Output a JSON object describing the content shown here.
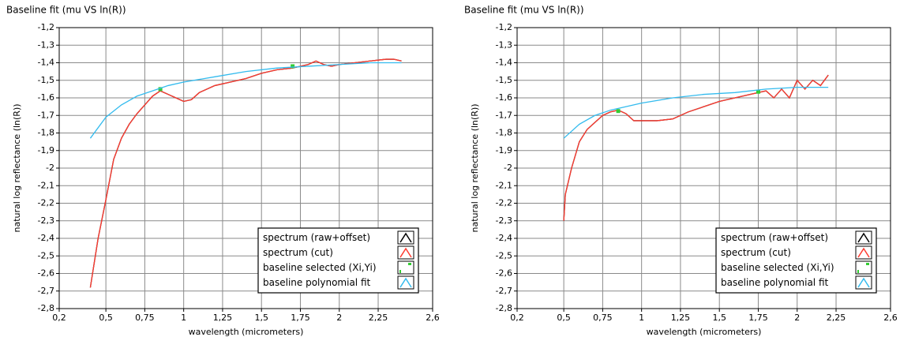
{
  "chart_data": [
    {
      "type": "line",
      "title": "Baseline fit (mu VS ln(R))",
      "x_label": "wavelength (micrometers)",
      "y_label": "natural log reflectance (ln(R))",
      "xlim": [
        0.2,
        2.6
      ],
      "ylim": [
        -2.8,
        -1.2
      ],
      "grid": true,
      "legend": "lower right",
      "xticks": [
        {
          "value": 0.2,
          "label": "0,2"
        },
        {
          "value": 0.5,
          "label": "0,5"
        },
        {
          "value": 0.75,
          "label": "0,75"
        },
        1,
        {
          "value": 1.25,
          "label": "1,25"
        },
        {
          "value": 1.5,
          "label": "1,5"
        },
        {
          "value": 1.75,
          "label": "1,75"
        },
        2,
        {
          "value": 2.25,
          "label": "2,25"
        },
        {
          "value": 2.6,
          "label": "2,6"
        }
      ],
      "yticks": [
        {
          "value": -1.2,
          "label": "-1,2"
        },
        {
          "value": -1.3,
          "label": "-1,3"
        },
        {
          "value": -1.4,
          "label": "-1,4"
        },
        {
          "value": -1.5,
          "label": "-1,5"
        },
        {
          "value": -1.6,
          "label": "-1,6"
        },
        {
          "value": -1.7,
          "label": "-1,7"
        },
        {
          "value": -1.8,
          "label": "-1,8"
        },
        {
          "value": -1.9,
          "label": "-1,9"
        },
        -2,
        {
          "value": -2.1,
          "label": "-2,1"
        },
        {
          "value": -2.2,
          "label": "-2,2"
        },
        {
          "value": -2.3,
          "label": "-2,3"
        },
        {
          "value": -2.4,
          "label": "-2,4"
        },
        {
          "value": -2.5,
          "label": "-2,5"
        },
        {
          "value": -2.6,
          "label": "-2,6"
        },
        {
          "value": -2.7,
          "label": "-2,7"
        },
        {
          "value": -2.8,
          "label": "-2,8"
        }
      ],
      "series": [
        {
          "name": "spectrum (raw+offset)",
          "color": "#000000",
          "style": "line",
          "x": [
            0.4,
            0.45,
            0.5,
            0.55,
            0.6,
            0.65,
            0.7,
            0.75,
            0.8,
            0.85,
            0.9,
            0.95,
            1.0,
            1.05,
            1.1,
            1.2,
            1.3,
            1.4,
            1.5,
            1.6,
            1.7,
            1.8,
            1.85,
            1.9,
            1.95,
            2.0,
            2.1,
            2.2,
            2.3,
            2.35,
            2.4
          ],
          "values": [
            -2.68,
            -2.4,
            -2.18,
            -1.95,
            -1.83,
            -1.75,
            -1.69,
            -1.64,
            -1.59,
            -1.56,
            -1.58,
            -1.6,
            -1.62,
            -1.61,
            -1.57,
            -1.53,
            -1.51,
            -1.49,
            -1.46,
            -1.44,
            -1.43,
            -1.41,
            -1.39,
            -1.41,
            -1.42,
            -1.41,
            -1.4,
            -1.39,
            -1.38,
            -1.38,
            -1.39
          ]
        },
        {
          "name": "spectrum (cut)",
          "color": "#ff3b30",
          "style": "line",
          "x": [
            0.4,
            0.45,
            0.5,
            0.55,
            0.6,
            0.65,
            0.7,
            0.75,
            0.8,
            0.85,
            0.9,
            0.95,
            1.0,
            1.05,
            1.1,
            1.2,
            1.3,
            1.4,
            1.5,
            1.6,
            1.7,
            1.8,
            1.85,
            1.9,
            1.95,
            2.0,
            2.1,
            2.2,
            2.3,
            2.35,
            2.4
          ],
          "values": [
            -2.68,
            -2.4,
            -2.18,
            -1.95,
            -1.83,
            -1.75,
            -1.69,
            -1.64,
            -1.59,
            -1.56,
            -1.58,
            -1.6,
            -1.62,
            -1.61,
            -1.57,
            -1.53,
            -1.51,
            -1.49,
            -1.46,
            -1.44,
            -1.43,
            -1.41,
            -1.39,
            -1.41,
            -1.42,
            -1.41,
            -1.4,
            -1.39,
            -1.38,
            -1.38,
            -1.39
          ]
        },
        {
          "name": "baseline selected (Xi,Yi)",
          "color": "#33cc33",
          "style": "points",
          "x": [
            0.85,
            1.7
          ],
          "values": [
            -1.55,
            -1.42
          ]
        },
        {
          "name": "baseline polynomial fit",
          "color": "#33bbee",
          "style": "line",
          "x": [
            0.4,
            0.5,
            0.6,
            0.7,
            0.8,
            0.9,
            1.0,
            1.2,
            1.4,
            1.6,
            1.8,
            2.0,
            2.2,
            2.4
          ],
          "values": [
            -1.83,
            -1.71,
            -1.64,
            -1.59,
            -1.56,
            -1.53,
            -1.51,
            -1.48,
            -1.45,
            -1.43,
            -1.42,
            -1.41,
            -1.4,
            -1.4
          ]
        }
      ]
    },
    {
      "type": "line",
      "title": "Baseline fit (mu VS ln(R))",
      "x_label": "wavelength (micrometers)",
      "y_label": "natural log reflectance (ln(R))",
      "xlim": [
        0.2,
        2.6
      ],
      "ylim": [
        -2.8,
        -1.2
      ],
      "grid": true,
      "legend": "lower right",
      "xticks": [
        {
          "value": 0.2,
          "label": "0,2"
        },
        {
          "value": 0.5,
          "label": "0,5"
        },
        {
          "value": 0.75,
          "label": "0,75"
        },
        1,
        {
          "value": 1.25,
          "label": "1,25"
        },
        {
          "value": 1.5,
          "label": "1,5"
        },
        {
          "value": 1.75,
          "label": "1,75"
        },
        2,
        {
          "value": 2.25,
          "label": "2,25"
        },
        {
          "value": 2.6,
          "label": "2,6"
        }
      ],
      "yticks": [
        {
          "value": -1.2,
          "label": "-1,2"
        },
        {
          "value": -1.3,
          "label": "-1,3"
        },
        {
          "value": -1.4,
          "label": "-1,4"
        },
        {
          "value": -1.5,
          "label": "-1,5"
        },
        {
          "value": -1.6,
          "label": "-1,6"
        },
        {
          "value": -1.7,
          "label": "-1,7"
        },
        {
          "value": -1.8,
          "label": "-1,8"
        },
        {
          "value": -1.9,
          "label": "-1,9"
        },
        -2,
        {
          "value": -2.1,
          "label": "-2,1"
        },
        {
          "value": -2.2,
          "label": "-2,2"
        },
        {
          "value": -2.3,
          "label": "-2,3"
        },
        {
          "value": -2.4,
          "label": "-2,4"
        },
        {
          "value": -2.5,
          "label": "-2,5"
        },
        {
          "value": -2.6,
          "label": "-2,6"
        },
        {
          "value": -2.7,
          "label": "-2,7"
        },
        {
          "value": -2.8,
          "label": "-2,8"
        }
      ],
      "series": [
        {
          "name": "spectrum (raw+offset)",
          "color": "#000000",
          "style": "line",
          "x": [
            0.5,
            0.51,
            0.55,
            0.6,
            0.65,
            0.7,
            0.75,
            0.8,
            0.85,
            0.9,
            0.95,
            1.0,
            1.1,
            1.2,
            1.3,
            1.4,
            1.5,
            1.6,
            1.7,
            1.8,
            1.85,
            1.9,
            1.95,
            2.0,
            2.05,
            2.1,
            2.15,
            2.2
          ],
          "values": [
            -2.3,
            -2.15,
            -2.0,
            -1.85,
            -1.78,
            -1.74,
            -1.7,
            -1.68,
            -1.67,
            -1.69,
            -1.73,
            -1.73,
            -1.73,
            -1.72,
            -1.68,
            -1.65,
            -1.62,
            -1.6,
            -1.58,
            -1.56,
            -1.6,
            -1.55,
            -1.6,
            -1.5,
            -1.55,
            -1.5,
            -1.53,
            -1.47
          ]
        },
        {
          "name": "spectrum (cut)",
          "color": "#ff3b30",
          "style": "line",
          "x": [
            0.5,
            0.51,
            0.55,
            0.6,
            0.65,
            0.7,
            0.75,
            0.8,
            0.85,
            0.9,
            0.95,
            1.0,
            1.1,
            1.2,
            1.3,
            1.4,
            1.5,
            1.6,
            1.7,
            1.8,
            1.85,
            1.9,
            1.95,
            2.0,
            2.05,
            2.1,
            2.15,
            2.2
          ],
          "values": [
            -2.3,
            -2.15,
            -2.0,
            -1.85,
            -1.78,
            -1.74,
            -1.7,
            -1.68,
            -1.67,
            -1.69,
            -1.73,
            -1.73,
            -1.73,
            -1.72,
            -1.68,
            -1.65,
            -1.62,
            -1.6,
            -1.58,
            -1.56,
            -1.6,
            -1.55,
            -1.6,
            -1.5,
            -1.55,
            -1.5,
            -1.53,
            -1.47
          ]
        },
        {
          "name": "baseline selected (Xi,Yi)",
          "color": "#33cc33",
          "style": "points",
          "x": [
            0.85,
            1.75
          ],
          "values": [
            -1.675,
            -1.565
          ]
        },
        {
          "name": "baseline polynomial fit",
          "color": "#33bbee",
          "style": "line",
          "x": [
            0.5,
            0.6,
            0.7,
            0.8,
            0.9,
            1.0,
            1.2,
            1.4,
            1.6,
            1.8,
            2.0,
            2.2
          ],
          "values": [
            -1.83,
            -1.75,
            -1.7,
            -1.67,
            -1.65,
            -1.63,
            -1.6,
            -1.58,
            -1.57,
            -1.55,
            -1.54,
            -1.54
          ]
        }
      ]
    }
  ]
}
